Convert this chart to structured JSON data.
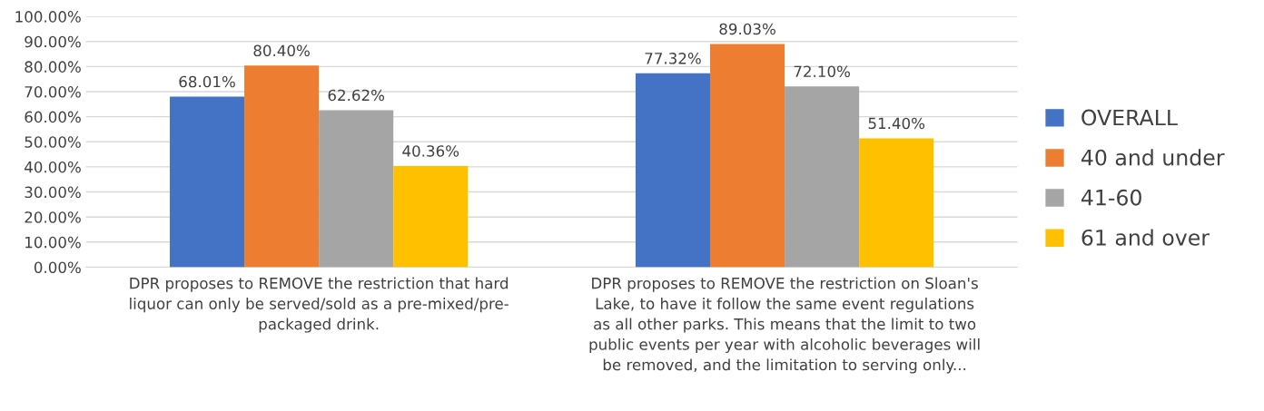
{
  "chart_data": {
    "type": "bar",
    "categories": [
      "DPR proposes to REMOVE the restriction that hard\nliquor can only be served/sold as a pre-mixed/pre-\npackaged drink.",
      "DPR proposes to REMOVE the restriction on Sloan's\nLake, to have it follow the same event regulations\nas all other parks. This means that the limit to two\npublic events per year with alcoholic beverages will\nbe removed, and the limitation to serving only..."
    ],
    "series": [
      {
        "name": "OVERALL",
        "color": "#4472c4",
        "values": [
          68.01,
          77.32
        ],
        "value_labels": [
          "68.01%",
          "77.32%"
        ]
      },
      {
        "name": "40 and under",
        "color": "#ed7d31",
        "values": [
          80.4,
          89.03
        ],
        "value_labels": [
          "80.40%",
          "89.03%"
        ]
      },
      {
        "name": "41-60",
        "color": "#a5a5a5",
        "values": [
          62.62,
          72.1
        ],
        "value_labels": [
          "62.62%",
          "72.10%"
        ]
      },
      {
        "name": "61 and over",
        "color": "#ffc000",
        "values": [
          40.36,
          51.4
        ],
        "value_labels": [
          "40.36%",
          "51.40%"
        ]
      }
    ],
    "ylim": [
      0,
      100
    ],
    "yticks": [
      {
        "value": 0,
        "label": "0.00%"
      },
      {
        "value": 10,
        "label": "10.00%"
      },
      {
        "value": 20,
        "label": "20.00%"
      },
      {
        "value": 30,
        "label": "30.00%"
      },
      {
        "value": 40,
        "label": "40.00%"
      },
      {
        "value": 50,
        "label": "50.00%"
      },
      {
        "value": 60,
        "label": "60.00%"
      },
      {
        "value": 70,
        "label": "70.00%"
      },
      {
        "value": 80,
        "label": "80.00%"
      },
      {
        "value": 90,
        "label": "90.00%"
      },
      {
        "value": 100,
        "label": "100.00%"
      }
    ],
    "grid": "y",
    "legend": "right"
  }
}
